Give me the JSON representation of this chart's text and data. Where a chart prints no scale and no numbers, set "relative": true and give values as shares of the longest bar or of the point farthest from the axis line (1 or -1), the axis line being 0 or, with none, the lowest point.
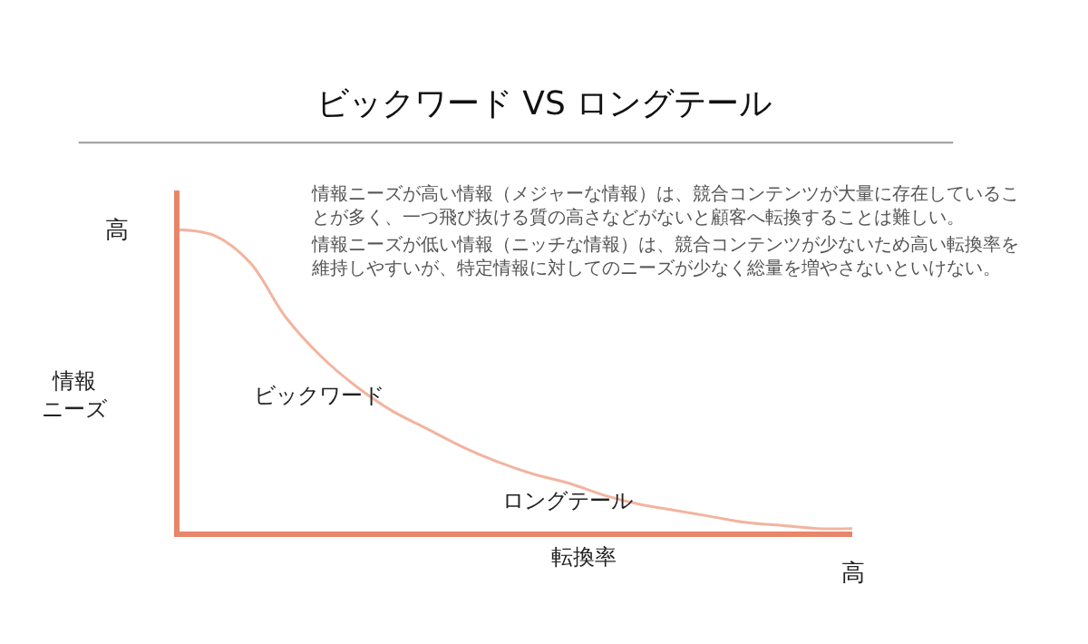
{
  "chart_data": {
    "type": "line",
    "relative": true,
    "title": "ビックワード VS ロングテール",
    "xlabel": "転換率",
    "ylabel": "情報ニーズ",
    "categories": [
      null,
      null,
      null,
      null,
      null,
      null,
      null,
      null,
      null,
      null,
      null,
      null,
      null,
      null,
      null,
      null,
      null,
      null,
      null,
      null
    ],
    "series": [
      {
        "color": "#f2b4a0",
        "values": [
          1.0,
          0.98,
          0.89,
          0.71,
          0.58,
          0.48,
          0.4,
          0.34,
          0.28,
          0.23,
          0.19,
          0.16,
          0.12,
          0.09,
          0.07,
          0.05,
          0.03,
          0.02,
          0.01,
          0.01
        ]
      }
    ],
    "annotations": [
      "高",
      "高",
      "ビックワード",
      "ロングテール",
      "情報ニーズが高い情報（メジャーな情報）は、競合コンテンツが大量に存在していることが多く、一つ飛び抜ける質の高さなどがないと顧客へ転換することは難しい。",
      "情報ニーズが低い情報（ニッチな情報）は、競合コンテンツが少ないため高い転換率を維持しやすいが、特定情報に対してのニーズが少なく総量を増やさないといけない。"
    ],
    "legend": false,
    "marker": "none",
    "line_style": "solid",
    "tick_labels": false
  }
}
